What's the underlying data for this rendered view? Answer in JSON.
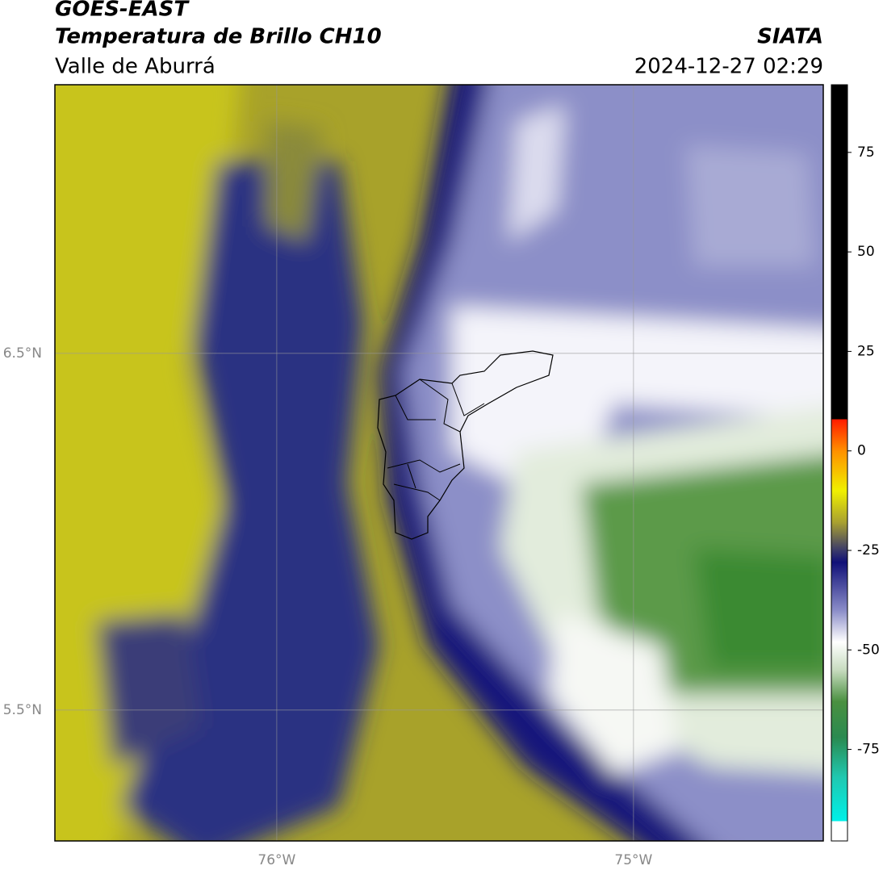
{
  "header": {
    "title": "GOES-EAST",
    "subtitle": "Temperatura de Brillo CH10",
    "region": "Valle de Aburrá",
    "source": "SIATA",
    "timestamp": "2024-12-27 02:29"
  },
  "map": {
    "xlim": [
      -76.622,
      -74.468
    ],
    "ylim": [
      5.133,
      7.253
    ],
    "xticks": [
      {
        "value": -76,
        "label": "76°W"
      },
      {
        "value": -75,
        "label": "75°W"
      }
    ],
    "yticks": [
      {
        "value": 6.5,
        "label": "6.5°N"
      },
      {
        "value": 5.5,
        "label": "5.5°N"
      }
    ],
    "grid": true
  },
  "colorbar": {
    "lim": [
      -98,
      92
    ],
    "ticks": [
      75,
      50,
      25,
      0,
      -25,
      -50,
      -75
    ],
    "colormap": [
      {
        "value": 92,
        "color": "#000000"
      },
      {
        "value": 8,
        "color": "#000000"
      },
      {
        "value": 8,
        "color": "#ff1a00"
      },
      {
        "value": 0,
        "color": "#ff9000"
      },
      {
        "value": -10,
        "color": "#f0f000"
      },
      {
        "value": -18,
        "color": "#a8a030"
      },
      {
        "value": -25,
        "color": "#3a3a6a"
      },
      {
        "value": -28,
        "color": "#101078"
      },
      {
        "value": -40,
        "color": "#8a8cc8"
      },
      {
        "value": -48,
        "color": "#ffffff"
      },
      {
        "value": -55,
        "color": "#c8dcc0"
      },
      {
        "value": -63,
        "color": "#4a9040"
      },
      {
        "value": -72,
        "color": "#2a8a50"
      },
      {
        "value": -82,
        "color": "#20c8b0"
      },
      {
        "value": -93,
        "color": "#00f0e8"
      },
      {
        "value": -93,
        "color": "#ffffff"
      },
      {
        "value": -98,
        "color": "#ffffff"
      }
    ]
  }
}
